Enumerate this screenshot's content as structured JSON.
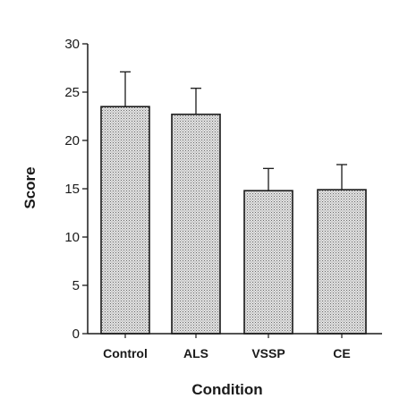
{
  "chart_data": {
    "type": "bar",
    "title": "",
    "xlabel": "Condition",
    "ylabel": "Score",
    "categories": [
      "Control",
      "ALS",
      "VSSP",
      "CE"
    ],
    "values": [
      23.5,
      22.7,
      14.8,
      14.9
    ],
    "error_upper": [
      27.1,
      25.4,
      17.1,
      17.5
    ],
    "ylim": [
      0,
      30
    ],
    "yticks": [
      "0",
      "5",
      "10",
      "15",
      "20",
      "25",
      "30"
    ],
    "grid": false,
    "legend": "none",
    "colors": {
      "bar_fill": "#d4d4d4",
      "bar_stroke": "#1a1a1a",
      "axis": "#1a1a1a",
      "stipple": "#6a6a6a"
    }
  }
}
